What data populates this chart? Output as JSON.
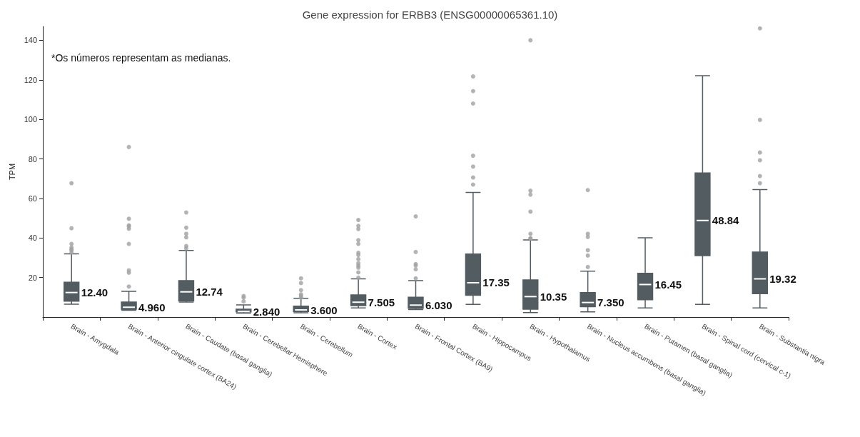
{
  "chart_data": {
    "type": "box",
    "title": "Gene expression for ERBB3 (ENSG00000065361.10)",
    "ylabel": "TPM",
    "annotations": [
      "*Os números representam as medianas."
    ],
    "categories": [
      "Brain - Amygdala",
      "Brain - Anterior cingulate cortex (BA24)",
      "Brain - Caudate (basal ganglia)",
      "Brain - Cerebellar Hemisphere",
      "Brain - Cerebellum",
      "Brain - Cortex",
      "Brain - Frontal Cortex (BA9)",
      "Brain - Hippocampus",
      "Brain - Hypothalamus",
      "Brain - Nucleus accumbens (basal ganglia)",
      "Brain - Putamen (basal ganglia)",
      "Brain - Spinal cord (cervical c-1)",
      "Brain - Substantia nigra"
    ],
    "color": "#535c61",
    "boxes": [
      {
        "low": 6.5,
        "q1": 8.0,
        "median": 12.4,
        "q3": 17.6,
        "high": 32,
        "outliers": [
          67.7,
          44.9,
          37.0,
          35.2,
          34.3,
          33.8,
          32.6
        ]
      },
      {
        "low": 3.4,
        "q1": 4.0,
        "median": 4.96,
        "q3": 7.6,
        "high": 13,
        "outliers": [
          86,
          49.7,
          46.4,
          45.8,
          44.6,
          37,
          23.6,
          22.4,
          15.4
        ]
      },
      {
        "low": 7.6,
        "q1": 8.2,
        "median": 12.74,
        "q3": 18.4,
        "high": 33.7,
        "outliers": [
          52.9,
          45.2,
          42.1,
          40.3,
          35.9,
          34.7
        ]
      },
      {
        "low": 2.0,
        "q1": 2.6,
        "median": 2.84,
        "q3": 4.0,
        "high": 6.1,
        "outliers": [
          10.6,
          9.8,
          7.9
        ]
      },
      {
        "low": 2.2,
        "q1": 2.8,
        "median": 3.6,
        "q3": 5.5,
        "high": 9.5,
        "outliers": [
          19.6,
          17.2,
          13.6,
          11.5,
          10.6,
          9.8
        ]
      },
      {
        "low": 4.6,
        "q1": 5.8,
        "median": 7.505,
        "q3": 11.2,
        "high": 19.3,
        "outliers": [
          49.1,
          46.1,
          44.5,
          38.9,
          37,
          32.5,
          31.4,
          29.3,
          27.2,
          26,
          25,
          22.6,
          19.9
        ]
      },
      {
        "low": 3.8,
        "q1": 4.4,
        "median": 6.03,
        "q3": 10.0,
        "high": 18.4,
        "outliers": [
          50.9,
          32.9,
          26.8,
          26,
          24.1,
          19.6
        ]
      },
      {
        "low": 6.4,
        "q1": 11.0,
        "median": 17.35,
        "q3": 31.9,
        "high": 63,
        "outliers": [
          121.7,
          114.3,
          108,
          81.6,
          76.1,
          70.6,
          67
        ]
      },
      {
        "low": 2.3,
        "q1": 4.0,
        "median": 10.35,
        "q3": 18.8,
        "high": 39,
        "outliers": [
          140,
          63.9,
          61.9,
          53.3,
          42.1,
          39.8,
          39.8
        ]
      },
      {
        "low": 2.6,
        "q1": 5.2,
        "median": 7.35,
        "q3": 12.4,
        "high": 23.2,
        "outliers": [
          64.2,
          42.1,
          40.5,
          33.8,
          31.1,
          25.3
        ]
      },
      {
        "low": 4.6,
        "q1": 8.8,
        "median": 16.45,
        "q3": 22.1,
        "high": 40.1
      },
      {
        "low": 6.4,
        "q1": 31.1,
        "median": 48.84,
        "q3": 72.9,
        "high": 122.1
      },
      {
        "low": 4.6,
        "q1": 11.8,
        "median": 19.32,
        "q3": 32.9,
        "high": 64.5,
        "outliers": [
          146,
          99.7,
          83.2,
          79.3,
          71.3,
          67.7
        ]
      }
    ],
    "value_labels": [
      "12.40",
      "4.960",
      "12.74",
      "2.840",
      "3.600",
      "7.505",
      "6.030",
      "17.35",
      "10.35",
      "7.350",
      "16.45",
      "48.84",
      "19.32"
    ],
    "ylim": [
      0,
      147
    ],
    "yticks": [
      20,
      40,
      60,
      80,
      100,
      120,
      140
    ],
    "grid": false
  }
}
